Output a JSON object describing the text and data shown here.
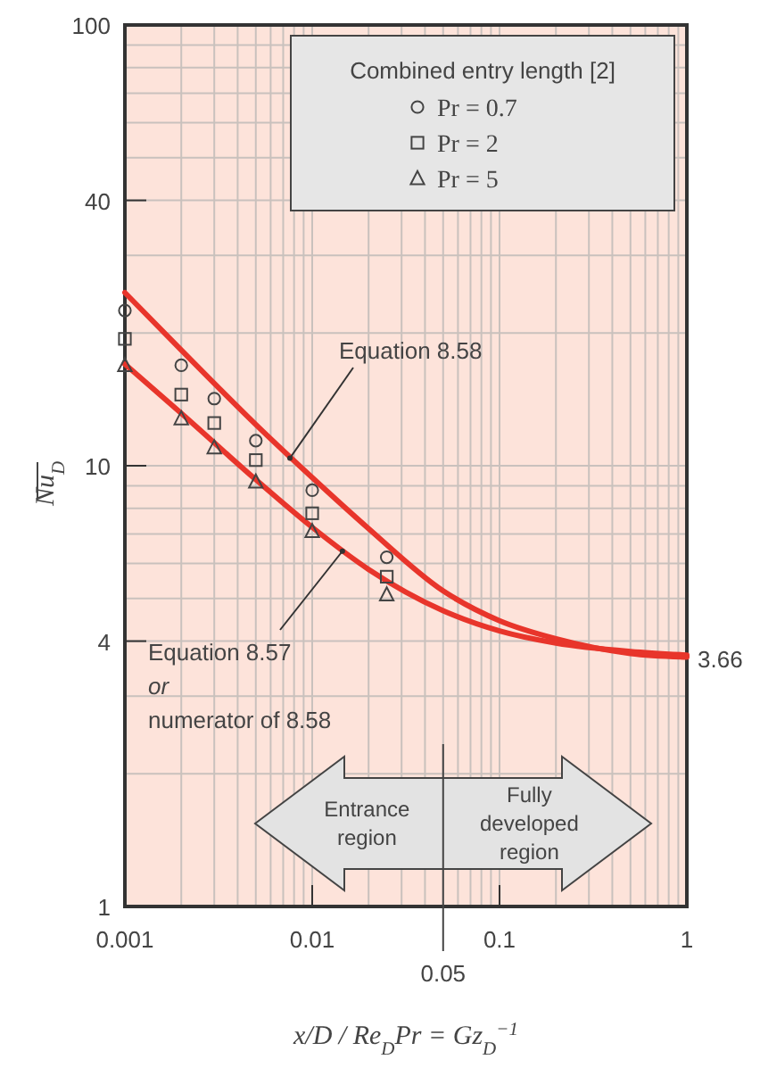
{
  "chart_data": {
    "type": "scatter",
    "xlabel": "x/D / Re$_{D}$Pr = Gz$_{D}$$^{−1}$",
    "ylabel": "Nu$_{D}$",
    "legend_title": "Combined entry length [2]",
    "legend": "top right",
    "log": "xy",
    "grid": true,
    "xlim": [
      0.001,
      1
    ],
    "ylim": [
      1,
      100
    ],
    "xticks": [
      0.001,
      0.01,
      0.1,
      1
    ],
    "ref_lines": [
      {
        "axis": "x",
        "value": 0.05,
        "label": "0.05"
      }
    ],
    "yticks": [
      1,
      4,
      10,
      40,
      100
    ],
    "series": [
      {
        "name": "Pr = 0.7",
        "color": "#444444",
        "marker": "circle",
        "x": [
          0.001,
          0.002,
          0.003,
          0.005,
          0.01,
          0.025
        ],
        "values": [
          22.5,
          16.9,
          14.2,
          11.4,
          8.8,
          6.2
        ]
      },
      {
        "name": "Pr = 2",
        "color": "#444444",
        "marker": "square",
        "x": [
          0.001,
          0.002,
          0.003,
          0.005,
          0.01,
          0.025
        ],
        "values": [
          19.4,
          14.5,
          12.5,
          10.3,
          7.8,
          5.6
        ]
      },
      {
        "name": "Pr = 5",
        "color": "#444444",
        "marker": "triangle",
        "x": [
          0.001,
          0.002,
          0.003,
          0.005,
          0.01,
          0.025
        ],
        "values": [
          16.9,
          12.8,
          11.0,
          9.2,
          7.1,
          5.1
        ]
      },
      {
        "type": "line",
        "color": "#e8352b",
        "marker": "none",
        "x": [
          0.001,
          0.002,
          0.005,
          0.01,
          0.02,
          0.05,
          0.1,
          0.2,
          0.5,
          1
        ],
        "values": [
          24.7,
          18.3,
          12.4,
          9.4,
          7.2,
          5.2,
          4.45,
          4.05,
          3.75,
          3.68
        ]
      },
      {
        "type": "line",
        "color": "#e8352b",
        "marker": "none",
        "x": [
          0.001,
          0.002,
          0.005,
          0.01,
          0.02,
          0.05,
          0.1,
          0.2,
          0.5,
          1
        ],
        "values": [
          17.0,
          13.15,
          9.3,
          7.25,
          5.82,
          4.69,
          4.22,
          3.96,
          3.79,
          3.72
        ]
      }
    ],
    "annotations": [
      {
        "text": "Equation 8.58",
        "x": 0.0076,
        "y": 10.4
      },
      {
        "text": "Equation 8.57\nor\nnumerator of 8.58",
        "x": 0.0145,
        "y": 6.4
      },
      {
        "text": "3.66",
        "x": 1,
        "y": 3.66
      },
      "Entrance region",
      "Fully developed region"
    ]
  }
}
